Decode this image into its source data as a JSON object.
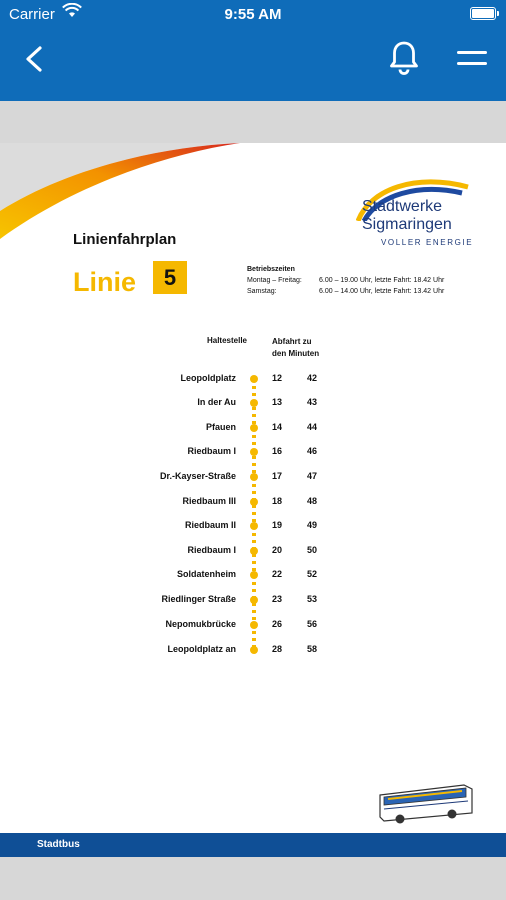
{
  "status_bar": {
    "carrier": "Carrier",
    "time": "9:55 AM"
  },
  "document": {
    "brand_line1": "Stadtwerke",
    "brand_line2": "Sigmaringen",
    "brand_tagline": "VOLLER ENERGIE",
    "plan_title": "Linienfahrplan",
    "line_label": "Linie",
    "line_number": "5",
    "operating_hours": {
      "title": "Betriebszeiten",
      "rows": [
        {
          "days": "Montag – Freitag:",
          "times": "6.00 – 19.00 Uhr, letzte Fahrt: 18.42 Uhr"
        },
        {
          "days": "Samstag:",
          "times": "6.00 – 14.00 Uhr, letzte Fahrt: 13.42 Uhr"
        }
      ]
    },
    "header_stop": "Haltestelle",
    "header_departure_line1": "Abfahrt zu",
    "header_departure_line2": "den Minuten",
    "stops": [
      {
        "name": "Leopoldplatz",
        "m1": "12",
        "m2": "42"
      },
      {
        "name": "In der Au",
        "m1": "13",
        "m2": "43"
      },
      {
        "name": "Pfauen",
        "m1": "14",
        "m2": "44"
      },
      {
        "name": "Riedbaum I",
        "m1": "16",
        "m2": "46"
      },
      {
        "name": "Dr.-Kayser-Straße",
        "m1": "17",
        "m2": "47"
      },
      {
        "name": "Riedbaum III",
        "m1": "18",
        "m2": "48"
      },
      {
        "name": "Riedbaum II",
        "m1": "19",
        "m2": "49"
      },
      {
        "name": "Riedbaum I",
        "m1": "20",
        "m2": "50"
      },
      {
        "name": "Soldatenheim",
        "m1": "22",
        "m2": "52"
      },
      {
        "name": "Riedlinger Straße",
        "m1": "23",
        "m2": "53"
      },
      {
        "name": "Nepomukbrücke",
        "m1": "26",
        "m2": "56"
      },
      {
        "name": "Leopoldplatz an",
        "m1": "28",
        "m2": "58"
      }
    ],
    "footer": "Stadtbus"
  },
  "colors": {
    "header_blue": "#0f6cb9",
    "footer_blue": "#0f4f96",
    "accent_yellow": "#f5b800"
  },
  "icons": {
    "back": "chevron-left-icon",
    "notifications": "bell-icon",
    "menu": "hamburger-menu-icon"
  }
}
